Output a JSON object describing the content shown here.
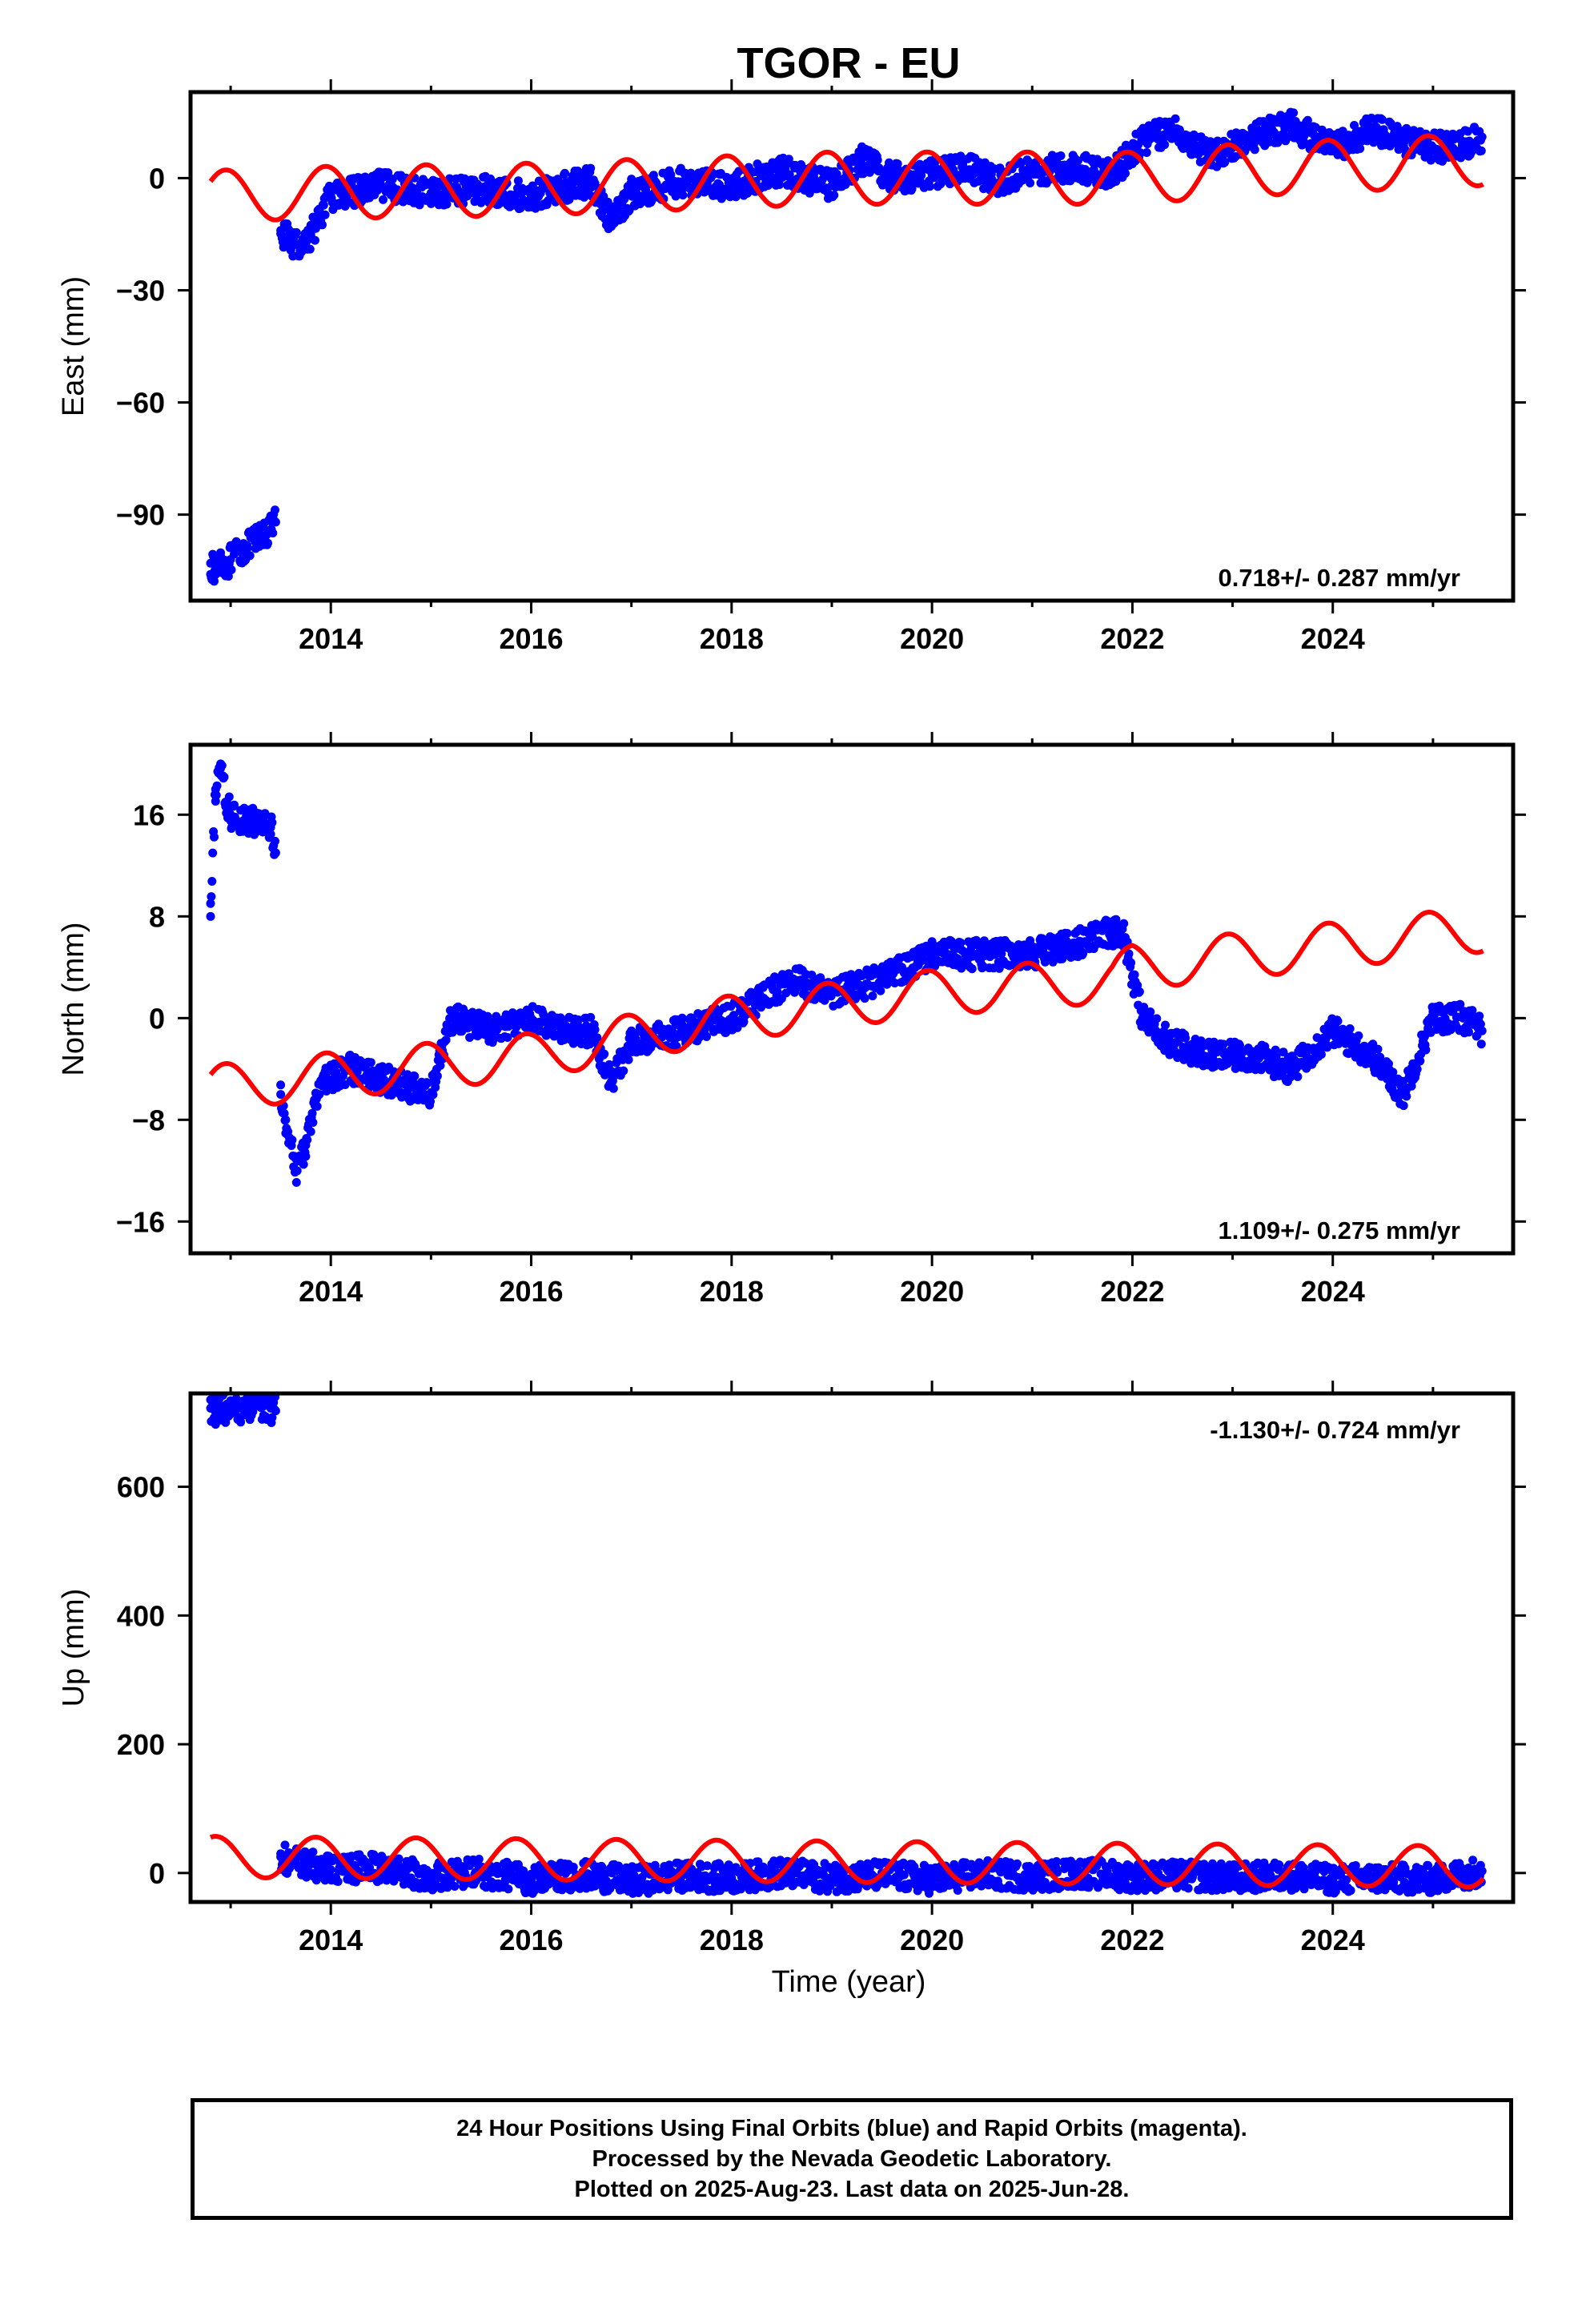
{
  "title": "TGOR - EU",
  "xlabel": "Time (year)",
  "caption": [
    "24 Hour Positions Using Final Orbits (blue) and Rapid Orbits (magenta).",
    "Processed by the Nevada Geodetic Laboratory.",
    "Plotted on 2025-Aug-23. Last data on 2025-Jun-28."
  ],
  "colors": {
    "observations": "#0000ff",
    "model": "#ff0000",
    "frame": "#000000"
  },
  "chart_data": [
    {
      "type": "scatter",
      "ylabel": "East (mm)",
      "velocity_label": "0.718+/- 0.287 mm/yr",
      "xlim": [
        2012.6,
        2025.8
      ],
      "ylim": [
        -113,
        23
      ],
      "x_ticks": [
        2014,
        2016,
        2018,
        2020,
        2022,
        2024
      ],
      "y_ticks": [
        0,
        -30,
        -60,
        -90
      ],
      "y_tick_labels": [
        "0",
        "−30",
        "−60",
        "−90"
      ],
      "series": [
        {
          "kind": "points",
          "x": [
            2012.8,
            2012.85,
            2012.9,
            2012.95,
            2013.0,
            2013.4,
            2013.45,
            2013.5,
            2013.6,
            2013.7,
            2013.8,
            2014.0,
            2014.5,
            2015.0,
            2015.5,
            2016.0,
            2016.4,
            2016.6,
            2016.8,
            2017.0,
            2017.5,
            2018.0,
            2018.5,
            2019.0,
            2019.3,
            2019.6,
            2020.0,
            2020.3,
            2020.7,
            2021.0,
            2021.4,
            2021.8,
            2022.1,
            2022.4,
            2022.8,
            2023.2,
            2023.6,
            2024.0,
            2024.4,
            2024.8,
            2025.2,
            2025.49
          ],
          "y": [
            -103,
            -106,
            -101,
            -104,
            -102,
            -94,
            -92,
            -14,
            -17,
            -18,
            -15,
            -5,
            -2,
            -4,
            -3,
            -5,
            -2,
            -1,
            -12,
            -4,
            -1,
            -2,
            2,
            -2,
            5,
            0,
            1,
            3,
            -1,
            2,
            3,
            1,
            10,
            13,
            6,
            11,
            14,
            8,
            13,
            9,
            8,
            11
          ]
        },
        {
          "kind": "line",
          "mean": [
            [
              2012.8,
              -5
            ],
            [
              2013.6,
              -4
            ],
            [
              2016.0,
              -3
            ],
            [
              2019.0,
              0
            ],
            [
              2022.0,
              0
            ],
            [
              2023.0,
              2
            ],
            [
              2025.5,
              5
            ]
          ],
          "amplitude": 7,
          "phase_year": 2012.95
        }
      ]
    },
    {
      "type": "scatter",
      "ylabel": "North (mm)",
      "velocity_label": "1.109+/- 0.275 mm/yr",
      "xlim": [
        2012.6,
        2025.8
      ],
      "ylim": [
        -18.5,
        21.5
      ],
      "x_ticks": [
        2014,
        2016,
        2018,
        2020,
        2022,
        2024
      ],
      "y_ticks": [
        16,
        8,
        0,
        -8,
        -16
      ],
      "y_tick_labels": [
        "16",
        "8",
        "0",
        "−8",
        "−16"
      ],
      "series": [
        {
          "kind": "points",
          "x": [
            2012.8,
            2012.85,
            2012.9,
            2012.95,
            2013.0,
            2013.4,
            2013.45,
            2013.5,
            2013.55,
            2013.65,
            2013.75,
            2013.9,
            2014.2,
            2014.6,
            2015.0,
            2015.2,
            2015.6,
            2016.0,
            2016.3,
            2016.6,
            2016.8,
            2017.0,
            2017.5,
            2018.0,
            2018.6,
            2019.0,
            2019.5,
            2020.0,
            2020.5,
            2021.0,
            2021.5,
            2021.9,
            2022.1,
            2022.4,
            2022.8,
            2023.2,
            2023.6,
            2024.0,
            2024.4,
            2024.7,
            2025.0,
            2025.3,
            2025.49
          ],
          "y": [
            8,
            18,
            20,
            17,
            16,
            15,
            13,
            -6,
            -8,
            -12,
            -10,
            -5,
            -4,
            -5,
            -6,
            0,
            -1,
            0,
            -1,
            -1,
            -5,
            -2,
            -1,
            0,
            3,
            2,
            3,
            5,
            5,
            5,
            6,
            7,
            0,
            -2,
            -3,
            -3,
            -4,
            -1,
            -3,
            -6,
            0,
            0,
            -1
          ]
        },
        {
          "kind": "line",
          "mean": [
            [
              2012.8,
              -5.5
            ],
            [
              2014.0,
              -4.5
            ],
            [
              2016.0,
              -3
            ],
            [
              2018.0,
              0
            ],
            [
              2020.0,
              2
            ],
            [
              2021.8,
              3
            ],
            [
              2022.0,
              4
            ],
            [
              2025.5,
              7
            ]
          ],
          "amplitude": 1.8,
          "phase_year": 2012.95
        }
      ]
    },
    {
      "type": "scatter",
      "ylabel": "Up (mm)",
      "velocity_label": "-1.130+/- 0.724 mm/yr",
      "xlim": [
        2012.6,
        2025.8
      ],
      "ylim": [
        -45,
        745
      ],
      "x_ticks": [
        2014,
        2016,
        2018,
        2020,
        2022,
        2024
      ],
      "y_ticks": [
        600,
        400,
        200,
        0
      ],
      "y_tick_labels": [
        "600",
        "400",
        "200",
        "0"
      ],
      "series": [
        {
          "kind": "points",
          "x": [
            2012.8,
            2012.85,
            2012.9,
            2012.95,
            2013.0,
            2013.05,
            2013.4,
            2013.45,
            2013.5,
            2013.6,
            2014.0,
            2014.5,
            2015.0,
            2015.5,
            2016.0,
            2016.5,
            2017.0,
            2017.5,
            2018.0,
            2018.5,
            2019.0,
            2019.5,
            2020.0,
            2020.5,
            2021.0,
            2021.5,
            2022.0,
            2022.5,
            2023.0,
            2023.5,
            2024.0,
            2024.5,
            2025.0,
            2025.49
          ],
          "y": [
            722,
            716,
            726,
            719,
            713,
            721,
            722,
            718,
            25,
            18,
            5,
            8,
            -5,
            0,
            -10,
            -3,
            -12,
            -5,
            -8,
            0,
            -8,
            -3,
            -10,
            -2,
            -6,
            0,
            -6,
            -4,
            -8,
            -4,
            -10,
            -8,
            -10,
            3
          ]
        },
        {
          "kind": "line",
          "mean": [
            [
              2012.8,
              25
            ],
            [
              2025.5,
              10
            ]
          ],
          "amplitude": 32,
          "phase_year": 2012.85
        }
      ]
    }
  ]
}
